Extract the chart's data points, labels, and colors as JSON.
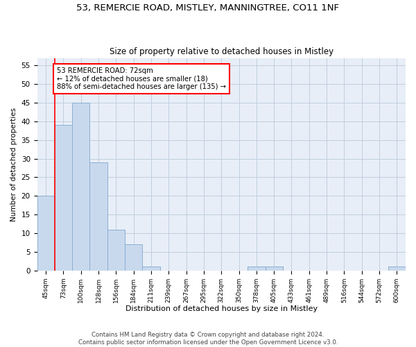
{
  "title_line1": "53, REMERCIE ROAD, MISTLEY, MANNINGTREE, CO11 1NF",
  "title_line2": "Size of property relative to detached houses in Mistley",
  "xlabel": "Distribution of detached houses by size in Mistley",
  "ylabel": "Number of detached properties",
  "categories": [
    "45sqm",
    "73sqm",
    "100sqm",
    "128sqm",
    "156sqm",
    "184sqm",
    "211sqm",
    "239sqm",
    "267sqm",
    "295sqm",
    "322sqm",
    "350sqm",
    "378sqm",
    "405sqm",
    "433sqm",
    "461sqm",
    "489sqm",
    "516sqm",
    "544sqm",
    "572sqm",
    "600sqm"
  ],
  "values": [
    20,
    39,
    45,
    29,
    11,
    7,
    1,
    0,
    0,
    0,
    0,
    0,
    1,
    1,
    0,
    0,
    0,
    0,
    0,
    0,
    1
  ],
  "bar_color": "#c9d9ed",
  "bar_edge_color": "#8aafd4",
  "annotation_text": "53 REMERCIE ROAD: 72sqm\n← 12% of detached houses are smaller (18)\n88% of semi-detached houses are larger (135) →",
  "annotation_box_color": "white",
  "annotation_box_edge": "red",
  "ylim": [
    0,
    57
  ],
  "yticks": [
    0,
    5,
    10,
    15,
    20,
    25,
    30,
    35,
    40,
    45,
    50,
    55
  ],
  "footer_line1": "Contains HM Land Registry data © Crown copyright and database right 2024.",
  "footer_line2": "Contains public sector information licensed under the Open Government Licence v3.0.",
  "grid_color": "#c0cfe0",
  "background_color": "#e8eef7"
}
